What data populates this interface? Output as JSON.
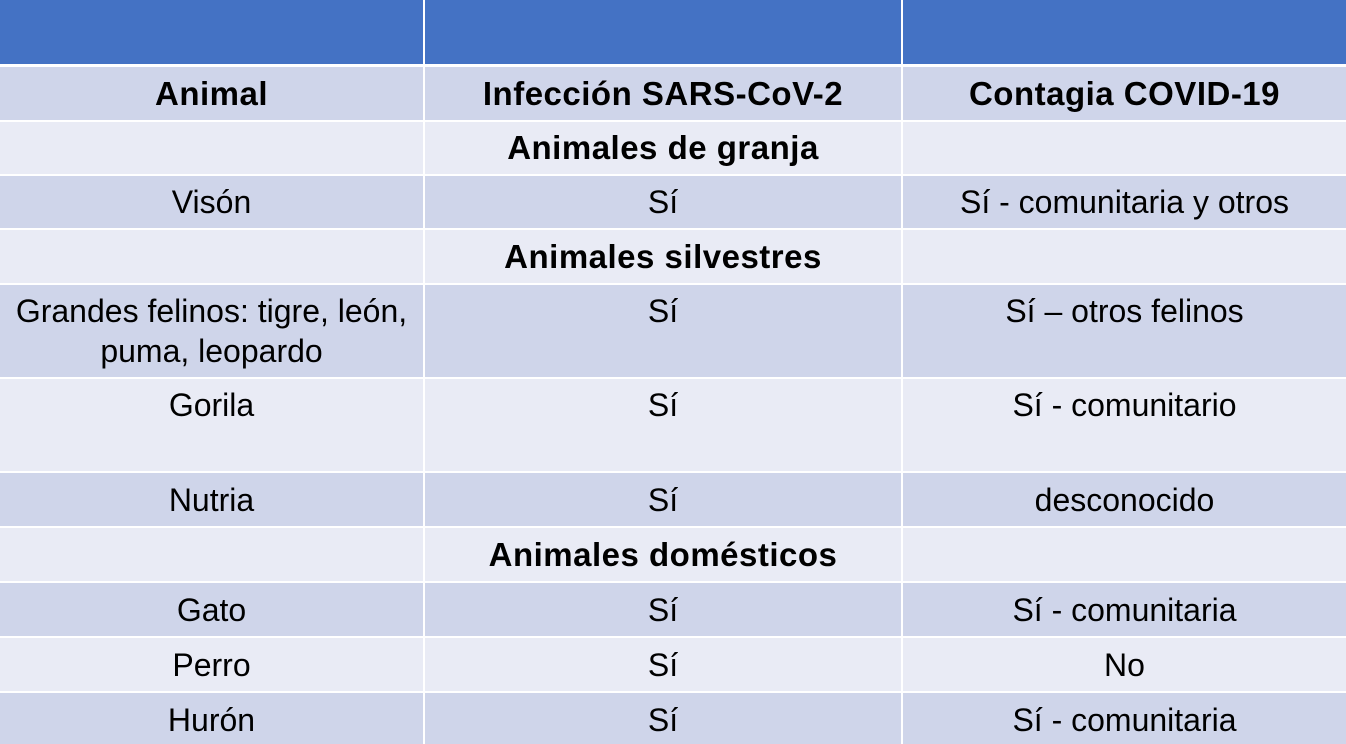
{
  "table": {
    "band": [
      "",
      "",
      ""
    ],
    "headers": [
      "Animal",
      "Infección SARS-CoV-2",
      "Contagia COVID-19"
    ],
    "sections": [
      {
        "title": "Animales de granja",
        "rows": [
          {
            "animal": "Visón",
            "infeccion": "Sí",
            "contagia": "Sí - comunitaria y otros"
          }
        ]
      },
      {
        "title": "Animales silvestres",
        "rows": [
          {
            "animal": "Grandes felinos: tigre, león, puma, leopardo",
            "infeccion": "Sí",
            "contagia": "Sí – otros felinos"
          },
          {
            "animal": "Gorila",
            "infeccion": "Sí",
            "contagia": "Sí - comunitario"
          },
          {
            "animal": "Nutria",
            "infeccion": "Sí",
            "contagia": "desconocido"
          }
        ]
      },
      {
        "title": "Animales domésticos",
        "rows": [
          {
            "animal": "Gato",
            "infeccion": "Sí",
            "contagia": "Sí - comunitaria"
          },
          {
            "animal": "Perro",
            "infeccion": "Sí",
            "contagia": "No"
          },
          {
            "animal": "Hurón",
            "infeccion": "Sí",
            "contagia": "Sí - comunitaria"
          }
        ]
      }
    ]
  },
  "colors": {
    "band": "#4472c4",
    "row_dark": "#cfd5ea",
    "row_light": "#e9ebf5",
    "grid": "#ffffff"
  }
}
